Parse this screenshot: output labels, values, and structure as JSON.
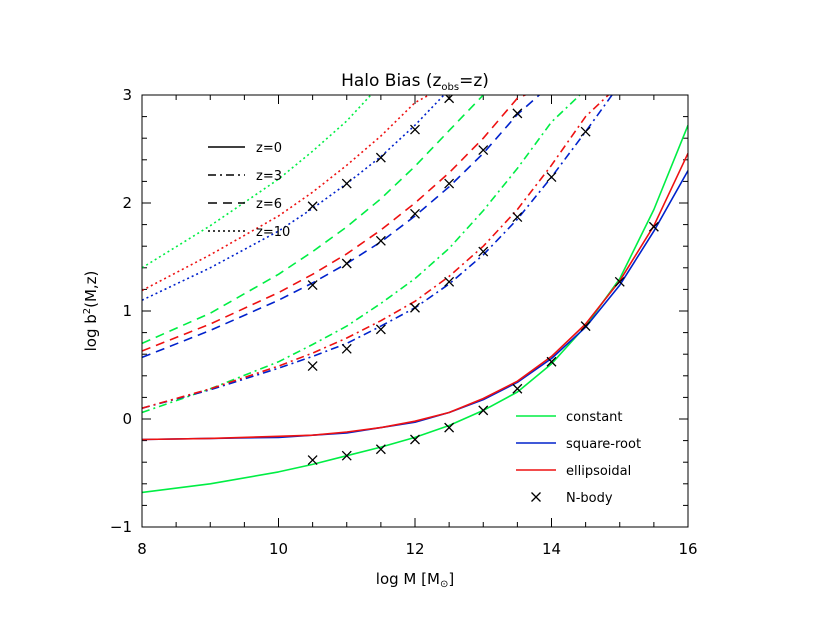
{
  "chart_data": {
    "type": "line",
    "title": {
      "main": "Halo Bias (z",
      "sub": "obs",
      "tail": "=z)"
    },
    "xlabel": {
      "pre": "log M [M",
      "sub": "⊙",
      "post": "]"
    },
    "ylabel": {
      "pre": "log b",
      "sup": "2",
      "post": "(M,z)"
    },
    "xlim": [
      8,
      16
    ],
    "ylim": [
      -1,
      3
    ],
    "xticks": [
      8,
      10,
      12,
      14,
      16
    ],
    "yticks": [
      -1,
      0,
      1,
      2,
      3
    ],
    "grid": false,
    "colors": {
      "constant": "#00ee44",
      "square-root": "#0022cc",
      "ellipsoidal": "#ee1111",
      "nbody": "#000000"
    },
    "line_styles": [
      {
        "label": "z=0",
        "dash": "solid"
      },
      {
        "label": "z=3",
        "dash": "dashdot"
      },
      {
        "label": "z=6",
        "dash": "dashed"
      },
      {
        "label": "z=10",
        "dash": "dotted"
      }
    ],
    "model_legend": [
      {
        "label": "constant",
        "model": "constant"
      },
      {
        "label": "square-root",
        "model": "square-root"
      },
      {
        "label": "ellipsoidal",
        "model": "ellipsoidal"
      },
      {
        "label": "N-body",
        "model": "nbody"
      }
    ],
    "series": [
      {
        "model": "constant",
        "z": 0,
        "dash": "solid",
        "x": [
          8,
          9,
          10,
          10.5,
          11,
          11.5,
          12,
          12.5,
          13,
          13.5,
          14,
          14.5,
          15,
          15.5,
          16
        ],
        "y": [
          -0.68,
          -0.6,
          -0.49,
          -0.42,
          -0.34,
          -0.26,
          -0.17,
          -0.06,
          0.08,
          0.25,
          0.51,
          0.86,
          1.3,
          1.94,
          2.72
        ]
      },
      {
        "model": "square-root",
        "z": 0,
        "dash": "solid",
        "x": [
          8,
          9,
          10,
          10.5,
          11,
          11.5,
          12,
          12.5,
          13,
          13.5,
          14,
          14.5,
          15,
          15.5,
          16
        ],
        "y": [
          -0.19,
          -0.18,
          -0.17,
          -0.15,
          -0.13,
          -0.08,
          -0.03,
          0.06,
          0.18,
          0.34,
          0.56,
          0.85,
          1.24,
          1.74,
          2.3
        ]
      },
      {
        "model": "ellipsoidal",
        "z": 0,
        "dash": "solid",
        "x": [
          8,
          9,
          10,
          10.5,
          11,
          11.5,
          12,
          12.5,
          13,
          13.5,
          14,
          14.5,
          15,
          15.5,
          16
        ],
        "y": [
          -0.19,
          -0.18,
          -0.16,
          -0.15,
          -0.12,
          -0.08,
          -0.02,
          0.06,
          0.19,
          0.35,
          0.58,
          0.88,
          1.28,
          1.79,
          2.46
        ]
      },
      {
        "model": "constant",
        "z": 3,
        "dash": "dashdot",
        "x": [
          8,
          9,
          10,
          10.5,
          11,
          11.5,
          12,
          12.5,
          13,
          13.5,
          14,
          14.5,
          15,
          15.5
        ],
        "y": [
          0.06,
          0.28,
          0.53,
          0.69,
          0.86,
          1.07,
          1.3,
          1.58,
          1.93,
          2.32,
          2.75,
          3.05,
          3.1,
          3.1
        ]
      },
      {
        "model": "square-root",
        "z": 3,
        "dash": "dashdot",
        "x": [
          8,
          9,
          10,
          10.5,
          11,
          11.5,
          12,
          12.5,
          13,
          13.5,
          14,
          14.5,
          15
        ],
        "y": [
          0.1,
          0.27,
          0.47,
          0.58,
          0.7,
          0.86,
          1.03,
          1.25,
          1.52,
          1.85,
          2.24,
          2.66,
          3.1
        ]
      },
      {
        "model": "ellipsoidal",
        "z": 3,
        "dash": "dashdot",
        "x": [
          8,
          9,
          10,
          10.5,
          11,
          11.5,
          12,
          12.5,
          13,
          13.5,
          14,
          14.5,
          15
        ],
        "y": [
          0.1,
          0.28,
          0.49,
          0.61,
          0.75,
          0.91,
          1.09,
          1.32,
          1.6,
          1.94,
          2.35,
          2.8,
          3.1
        ]
      },
      {
        "model": "constant",
        "z": 6,
        "dash": "dashed",
        "x": [
          8,
          9,
          10,
          10.5,
          11,
          11.5,
          12,
          12.5,
          13,
          13.5,
          14
        ],
        "y": [
          0.7,
          0.98,
          1.34,
          1.55,
          1.78,
          2.04,
          2.34,
          2.67,
          3.0,
          3.1,
          3.1
        ]
      },
      {
        "model": "square-root",
        "z": 6,
        "dash": "dashed",
        "x": [
          8,
          9,
          10,
          10.5,
          11,
          11.5,
          12,
          12.5,
          13,
          13.5,
          14
        ],
        "y": [
          0.57,
          0.82,
          1.1,
          1.26,
          1.44,
          1.64,
          1.88,
          2.15,
          2.46,
          2.82,
          3.1
        ]
      },
      {
        "model": "ellipsoidal",
        "z": 6,
        "dash": "dashed",
        "x": [
          8,
          9,
          10,
          10.5,
          11,
          11.5,
          12,
          12.5,
          13,
          13.5,
          14
        ],
        "y": [
          0.63,
          0.88,
          1.17,
          1.34,
          1.53,
          1.75,
          2.0,
          2.28,
          2.6,
          2.97,
          3.1
        ]
      },
      {
        "model": "constant",
        "z": 10,
        "dash": "dotted",
        "x": [
          8,
          9,
          10,
          10.5,
          11,
          11.5,
          12
        ],
        "y": [
          1.4,
          1.79,
          2.22,
          2.48,
          2.76,
          3.1,
          3.1
        ]
      },
      {
        "model": "square-root",
        "z": 10,
        "dash": "dotted",
        "x": [
          8,
          9,
          10,
          10.5,
          11,
          11.5,
          12,
          12.5,
          13
        ],
        "y": [
          1.1,
          1.4,
          1.74,
          1.95,
          2.18,
          2.43,
          2.72,
          3.05,
          3.1
        ]
      },
      {
        "model": "ellipsoidal",
        "z": 10,
        "dash": "dotted",
        "x": [
          8,
          9,
          10,
          10.5,
          11,
          11.5,
          12,
          12.5,
          13
        ],
        "y": [
          1.19,
          1.52,
          1.88,
          2.1,
          2.35,
          2.62,
          2.93,
          3.1,
          3.1
        ]
      }
    ],
    "nbody": {
      "x": [
        10.5,
        11,
        11.5,
        12,
        12.5,
        13,
        13.5,
        14,
        14.5,
        15,
        15.5,
        10.5,
        11,
        11.5,
        12,
        12.5,
        13,
        13.5,
        14,
        14.5,
        10.5,
        11,
        11.5,
        12,
        12.5,
        13,
        13.5,
        10.5,
        11,
        11.5,
        12,
        12.5
      ],
      "y": [
        -0.38,
        -0.34,
        -0.28,
        -0.19,
        -0.08,
        0.08,
        0.28,
        0.53,
        0.86,
        1.27,
        1.78,
        0.49,
        0.65,
        0.83,
        1.03,
        1.27,
        1.55,
        1.87,
        2.24,
        2.66,
        1.24,
        1.44,
        1.65,
        1.9,
        2.18,
        2.49,
        2.83,
        1.97,
        2.18,
        2.42,
        2.68,
        2.97
      ]
    }
  }
}
